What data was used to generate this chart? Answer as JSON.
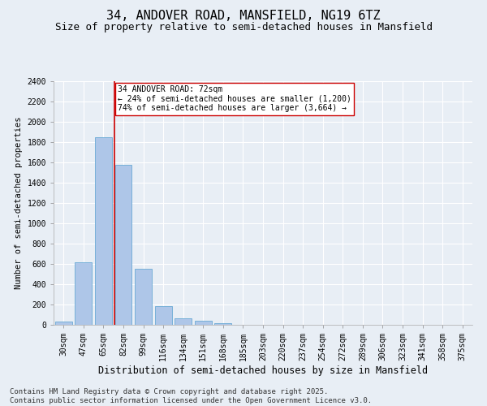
{
  "title1": "34, ANDOVER ROAD, MANSFIELD, NG19 6TZ",
  "title2": "Size of property relative to semi-detached houses in Mansfield",
  "xlabel": "Distribution of semi-detached houses by size in Mansfield",
  "ylabel": "Number of semi-detached properties",
  "categories": [
    "30sqm",
    "47sqm",
    "65sqm",
    "82sqm",
    "99sqm",
    "116sqm",
    "134sqm",
    "151sqm",
    "168sqm",
    "185sqm",
    "203sqm",
    "220sqm",
    "237sqm",
    "254sqm",
    "272sqm",
    "289sqm",
    "306sqm",
    "323sqm",
    "341sqm",
    "358sqm",
    "375sqm"
  ],
  "values": [
    35,
    620,
    1850,
    1580,
    550,
    185,
    65,
    40,
    20,
    0,
    0,
    0,
    0,
    0,
    0,
    0,
    0,
    0,
    0,
    0,
    0
  ],
  "bar_color": "#aec6e8",
  "bar_edge_color": "#6aaad4",
  "vline_x": 2.57,
  "vline_color": "#cc0000",
  "annotation_text": "34 ANDOVER ROAD: 72sqm\n← 24% of semi-detached houses are smaller (1,200)\n74% of semi-detached houses are larger (3,664) →",
  "annotation_box_color": "white",
  "annotation_box_edge": "#cc0000",
  "ylim": [
    0,
    2400
  ],
  "yticks": [
    0,
    200,
    400,
    600,
    800,
    1000,
    1200,
    1400,
    1600,
    1800,
    2000,
    2200,
    2400
  ],
  "bg_color": "#e8eef5",
  "plot_bg_color": "#e8eef5",
  "footer": "Contains HM Land Registry data © Crown copyright and database right 2025.\nContains public sector information licensed under the Open Government Licence v3.0.",
  "grid_color": "white",
  "title1_fontsize": 11,
  "title2_fontsize": 9,
  "xlabel_fontsize": 8.5,
  "ylabel_fontsize": 7.5,
  "tick_fontsize": 7,
  "annotation_fontsize": 7,
  "footer_fontsize": 6.5
}
